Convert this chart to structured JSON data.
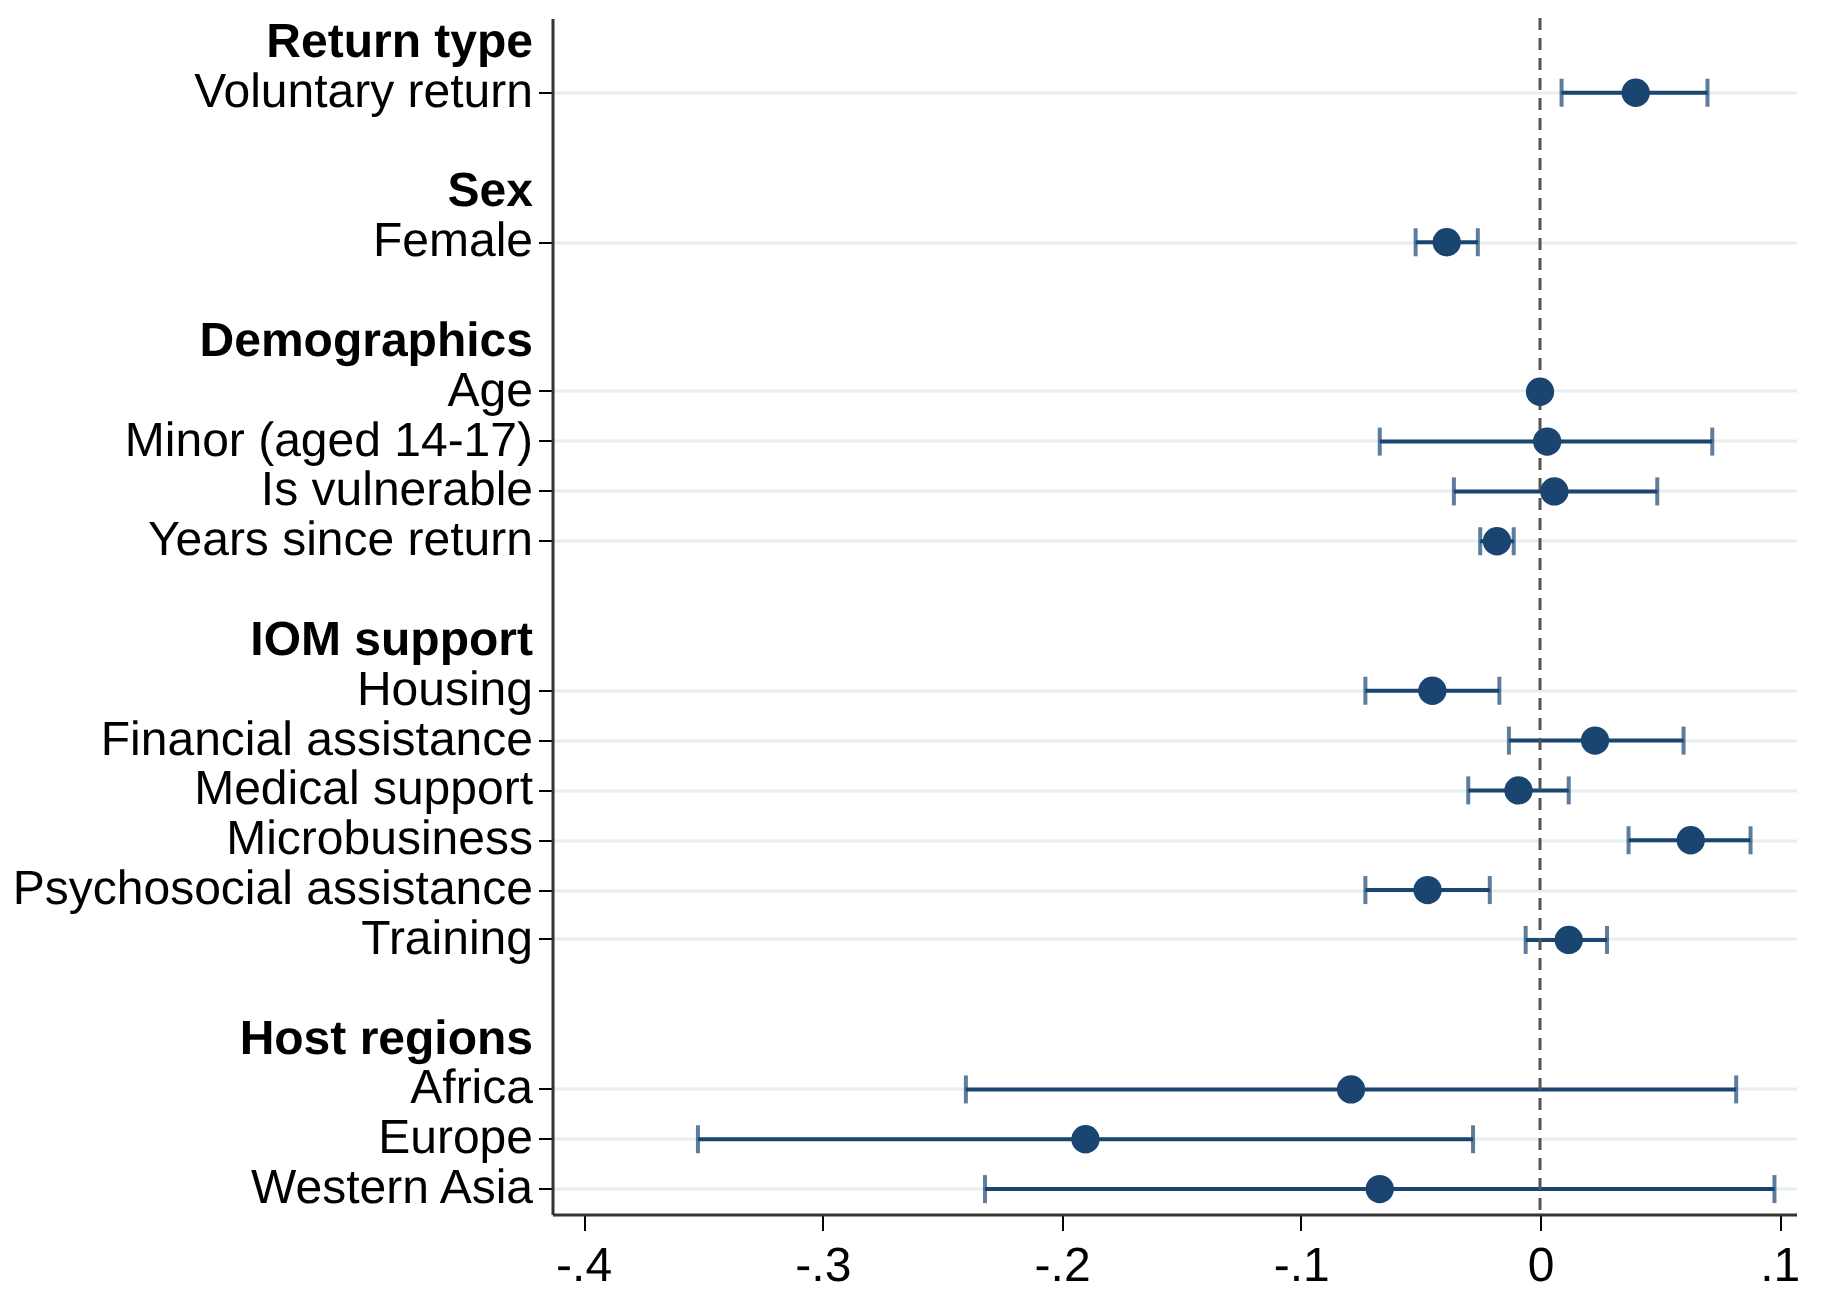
{
  "chart_data": {
    "type": "scatter",
    "orientation": "horizontal",
    "marker": "circle",
    "grid": "y",
    "categories": [
      "Return type",
      "Voluntary return",
      null,
      "Sex",
      "Female",
      null,
      "Demographics",
      "Age",
      "Minor (aged 14-17)",
      "Is vulnerable",
      "Years since return",
      null,
      "IOM support",
      "Housing",
      "Financial assistance",
      "Medical support",
      "Microbusiness",
      "Psychosocial assistance",
      "Training",
      null,
      "Host regions",
      "Africa",
      "Europe",
      "Western Asia"
    ],
    "series": [
      {
        "color": "#1a4570",
        "values": [
          null,
          0.04,
          null,
          null,
          -0.039,
          null,
          null,
          0.0,
          0.003,
          0.006,
          -0.018,
          null,
          null,
          -0.045,
          0.023,
          -0.009,
          0.063,
          -0.047,
          0.012,
          null,
          null,
          -0.079,
          -0.19,
          -0.067
        ],
        "errors": [
          null,
          [
            0.009,
            0.07
          ],
          null,
          null,
          [
            -0.052,
            -0.026
          ],
          null,
          null,
          null,
          [
            -0.067,
            0.072
          ],
          [
            -0.036,
            0.049
          ],
          [
            -0.025,
            -0.011
          ],
          null,
          null,
          [
            -0.073,
            -0.017
          ],
          [
            -0.013,
            0.06
          ],
          [
            -0.03,
            0.012
          ],
          [
            0.037,
            0.088
          ],
          [
            -0.073,
            -0.021
          ],
          [
            -0.006,
            0.028
          ],
          null,
          null,
          [
            -0.24,
            0.082
          ],
          [
            -0.352,
            -0.028
          ],
          [
            -0.232,
            0.098
          ]
        ]
      }
    ],
    "xlim": [
      -0.413,
      0.107
    ],
    "xticks": [
      {
        "value": -0.4,
        "label": "-.4"
      },
      {
        "value": -0.3,
        "label": "-.3"
      },
      {
        "value": -0.2,
        "label": "-.2"
      },
      {
        "value": -0.1,
        "label": "-.1"
      },
      0,
      {
        "value": 0.1,
        "label": ".1"
      }
    ],
    "ref_lines": [
      {
        "axis": "x",
        "value": 0,
        "color": "#555555",
        "line_style": "dashed"
      }
    ]
  }
}
